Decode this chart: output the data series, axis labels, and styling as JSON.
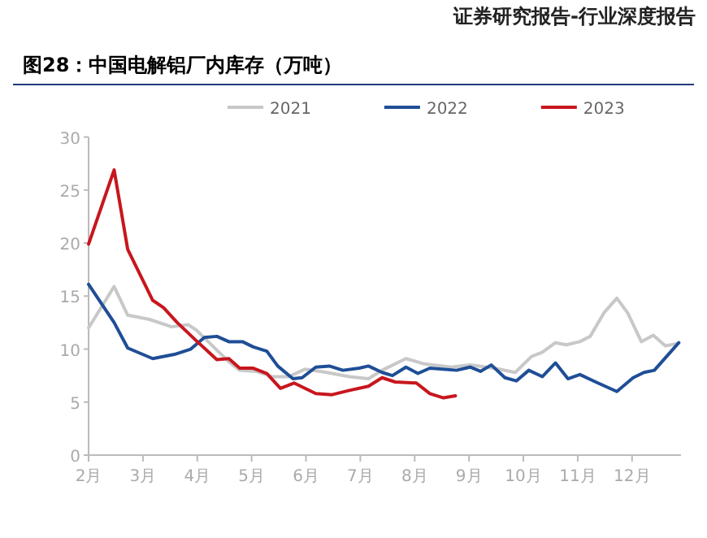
{
  "chart_data": {
    "type": "line",
    "title": "图28：中国电解铝厂内库存（万吨）",
    "annotations": [
      "证券研究报告-行业深度报告"
    ],
    "xlim": [
      2,
      12.9
    ],
    "ylim": [
      0,
      30
    ],
    "xticks": [
      {
        "value": 2,
        "label": "2月"
      },
      {
        "value": 3,
        "label": "3月"
      },
      {
        "value": 4,
        "label": "4月"
      },
      {
        "value": 5,
        "label": "5月"
      },
      {
        "value": 6,
        "label": "6月"
      },
      {
        "value": 7,
        "label": "7月"
      },
      {
        "value": 8,
        "label": "8月"
      },
      {
        "value": 9,
        "label": "9月"
      },
      {
        "value": 10,
        "label": "10月"
      },
      {
        "value": 11,
        "label": "11月"
      },
      {
        "value": 12,
        "label": "12月"
      }
    ],
    "yticks": [
      0,
      5,
      10,
      15,
      20,
      25,
      30
    ],
    "legend": "top",
    "series": [
      {
        "name": "2021",
        "color": "#c8c8c8",
        "x": [
          2,
          2.47,
          2.72,
          3.12,
          3.53,
          3.83,
          3.98,
          4.34,
          4.58,
          4.78,
          5.08,
          5.38,
          5.68,
          5.98,
          6.38,
          6.8,
          7.15,
          7.4,
          7.84,
          8.18,
          8.67,
          9.02,
          9.46,
          9.85,
          10.15,
          10.35,
          10.59,
          10.79,
          11.04,
          11.23,
          11.48,
          11.72,
          11.92,
          12.17,
          12.39,
          12.61,
          12.81
        ],
        "values": [
          12.0,
          15.9,
          13.2,
          12.8,
          12.1,
          12.3,
          11.8,
          10.0,
          8.8,
          8.0,
          7.9,
          7.4,
          7.4,
          8.1,
          7.8,
          7.4,
          7.2,
          8.0,
          9.1,
          8.6,
          8.3,
          8.5,
          8.2,
          7.8,
          9.3,
          9.7,
          10.6,
          10.4,
          10.7,
          11.2,
          13.4,
          14.8,
          13.4,
          10.7,
          11.3,
          10.3,
          10.5
        ]
      },
      {
        "name": "2022",
        "color": "#1f4e96",
        "x": [
          2,
          2.47,
          2.72,
          3.18,
          3.58,
          3.88,
          4.13,
          4.36,
          4.58,
          4.83,
          5.03,
          5.28,
          5.48,
          5.76,
          5.93,
          6.18,
          6.43,
          6.68,
          6.98,
          7.15,
          7.4,
          7.59,
          7.84,
          8.06,
          8.28,
          8.77,
          9.02,
          9.21,
          9.41,
          9.66,
          9.87,
          10.1,
          10.35,
          10.59,
          10.82,
          11.04,
          11.33,
          11.72,
          12.02,
          12.22,
          12.41,
          12.86
        ],
        "values": [
          16.1,
          12.5,
          10.1,
          9.1,
          9.5,
          10.0,
          11.1,
          11.2,
          10.7,
          10.7,
          10.2,
          9.8,
          8.4,
          7.2,
          7.3,
          8.3,
          8.4,
          8.0,
          8.2,
          8.4,
          7.8,
          7.5,
          8.3,
          7.7,
          8.2,
          8.0,
          8.3,
          7.9,
          8.5,
          7.3,
          7.0,
          8.0,
          7.4,
          8.7,
          7.2,
          7.6,
          6.9,
          6.0,
          7.3,
          7.8,
          8.0,
          10.6
        ]
      },
      {
        "name": "2023",
        "color": "#c8161d",
        "x": [
          2,
          2.47,
          2.72,
          3.18,
          3.38,
          3.63,
          3.98,
          4.36,
          4.58,
          4.78,
          5.03,
          5.28,
          5.53,
          5.78,
          6.18,
          6.48,
          6.8,
          7.15,
          7.4,
          7.64,
          8.03,
          8.28,
          8.53,
          8.75
        ],
        "values": [
          19.9,
          26.9,
          19.4,
          14.6,
          13.9,
          12.5,
          10.8,
          9.0,
          9.1,
          8.2,
          8.2,
          7.7,
          6.3,
          6.8,
          5.8,
          5.7,
          6.1,
          6.5,
          7.3,
          6.9,
          6.8,
          5.8,
          5.4,
          5.6
        ]
      }
    ]
  }
}
